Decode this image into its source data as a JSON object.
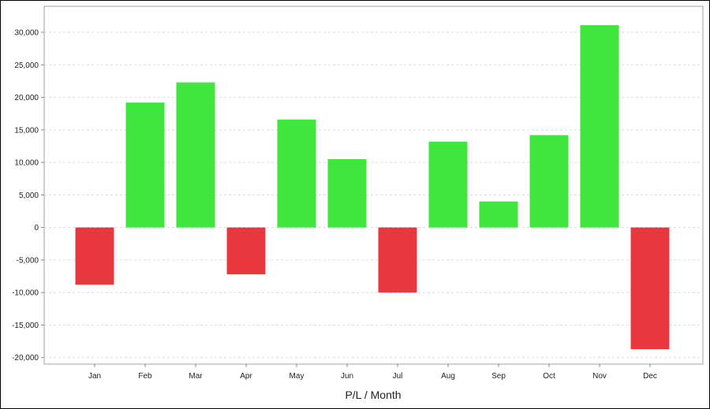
{
  "chart_data": {
    "type": "bar",
    "title": "",
    "xlabel": "P/L / Month",
    "ylabel": "",
    "categories": [
      "Jan",
      "Feb",
      "Mar",
      "Apr",
      "May",
      "Jun",
      "Jul",
      "Aug",
      "Sep",
      "Oct",
      "Nov",
      "Dec"
    ],
    "values": [
      -8800,
      19200,
      22300,
      -7200,
      16600,
      10500,
      -10000,
      13200,
      4000,
      14200,
      31100,
      -18700
    ],
    "ylim": [
      -21000,
      34000
    ],
    "yticks": [
      -20000,
      -15000,
      -10000,
      -5000,
      0,
      5000,
      10000,
      15000,
      20000,
      25000,
      30000
    ],
    "ytick_labels": [
      "-20,000",
      "-15,000",
      "-10,000",
      "-5,000",
      "0",
      "5,000",
      "10,000",
      "15,000",
      "20,000",
      "25,000",
      "30,000"
    ],
    "grid": true,
    "legend": "none",
    "colors": {
      "positive": "#3ee63e",
      "negative": "#e8383d",
      "grid": "#d9d9d9",
      "axis": "#888888"
    }
  }
}
